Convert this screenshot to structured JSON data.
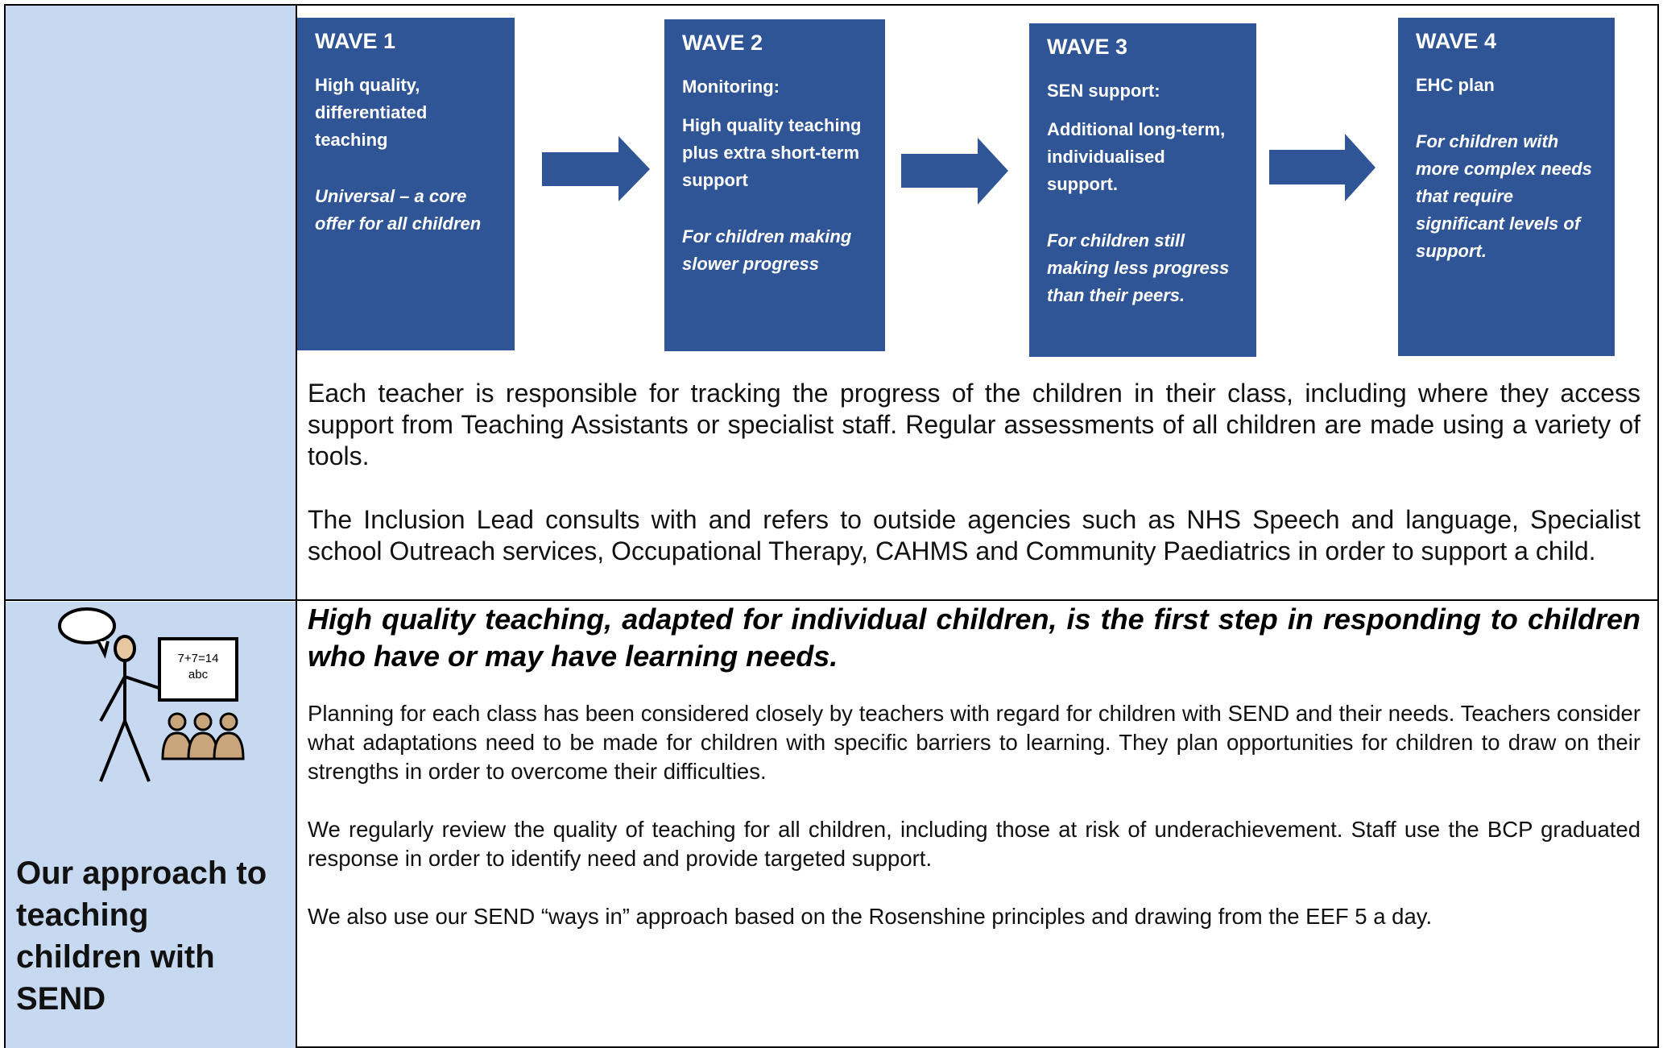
{
  "waves": [
    {
      "title": "WAVE 1",
      "items": [
        "High quality, differentiated teaching"
      ],
      "note": "Universal – a core offer for all children"
    },
    {
      "title": "WAVE 2",
      "items": [
        "Monitoring:",
        "High quality teaching plus extra short-term support"
      ],
      "note": "For children making slower progress"
    },
    {
      "title": "WAVE 3",
      "items": [
        "SEN support:",
        "Additional long-term, individualised support."
      ],
      "note": "For children still making less progress than their peers."
    },
    {
      "title": "WAVE 4",
      "items": [
        "EHC plan"
      ],
      "note": "For children with more complex needs that require significant levels of support."
    }
  ],
  "row1": {
    "paragraphs": [
      "Each teacher is responsible for tracking the progress of the children in their class, including where they access support from Teaching Assistants or specialist staff. Regular assessments of all children are made using a variety of tools.",
      "The Inclusion Lead consults with and refers to outside agencies such as NHS Speech and language, Specialist school Outreach services, Occupational Therapy, CAHMS and Community Paediatrics in order to support a child."
    ]
  },
  "row2": {
    "label": "Our approach to teaching children with SEND",
    "heading": "High quality teaching, adapted for individual children, is the first step in responding to children who have or may have learning needs.",
    "paragraphs": [
      "Planning for each class has been considered closely by teachers with regard for children with SEND and their needs. Teachers consider what adaptations need to be made for children with specific barriers to learning. They plan opportunities for children to draw on their strengths in order to overcome their difficulties.",
      "We regularly review the quality of teaching for all children, including those at risk of underachievement. Staff use the BCP graduated response in order to identify need and provide targeted support.",
      "We also use our SEND “ways in” approach based on the Rosenshine principles and drawing from the EEF 5 a day."
    ]
  },
  "icon": {
    "board": [
      "7+7=14",
      "abc"
    ]
  }
}
